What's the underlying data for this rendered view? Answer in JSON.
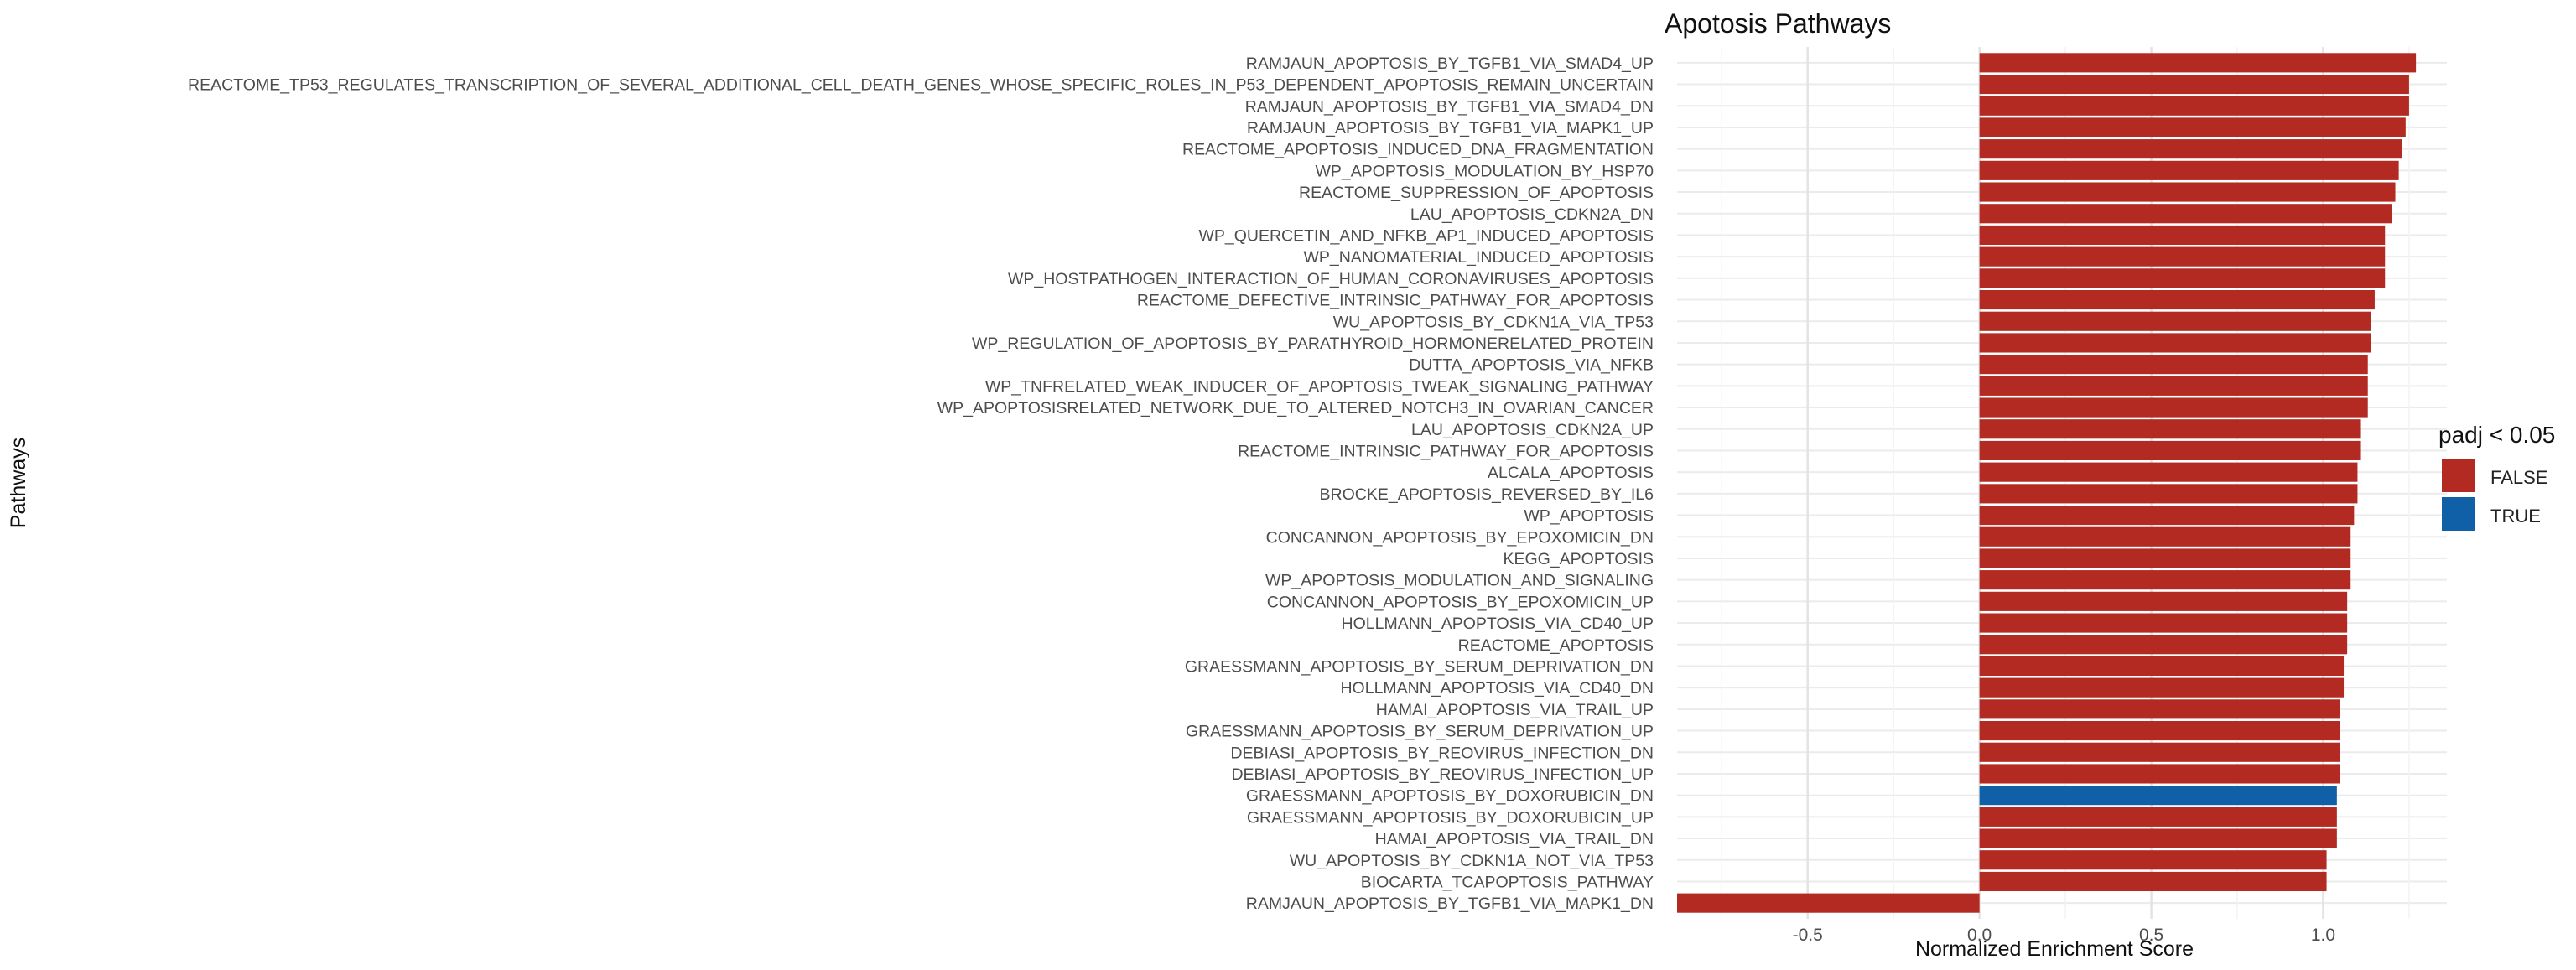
{
  "chart_data": {
    "type": "bar",
    "orientation": "horizontal",
    "title": "Apotosis Pathways",
    "xlabel": "Normalized Enrichment Score",
    "ylabel": "Pathways",
    "xlim": [
      -0.88,
      1.36
    ],
    "xticks": [
      -0.5,
      0.0,
      0.5,
      1.0
    ],
    "xtick_labels": [
      "-0.5",
      "0.0",
      "0.5",
      "1.0"
    ],
    "grid": true,
    "legend": {
      "title": "padj < 0.05",
      "placement": "right",
      "entries": [
        {
          "label": "FALSE",
          "color": "#b22a22"
        },
        {
          "label": "TRUE",
          "color": "#1060a8"
        }
      ]
    },
    "colors": {
      "false": "#b22a22",
      "true": "#1060a8"
    },
    "categories": [
      "RAMJAUN_APOPTOSIS_BY_TGFB1_VIA_SMAD4_UP",
      "REACTOME_TP53_REGULATES_TRANSCRIPTION_OF_SEVERAL_ADDITIONAL_CELL_DEATH_GENES_WHOSE_SPECIFIC_ROLES_IN_P53_DEPENDENT_APOPTOSIS_REMAIN_UNCERTAIN",
      "RAMJAUN_APOPTOSIS_BY_TGFB1_VIA_SMAD4_DN",
      "RAMJAUN_APOPTOSIS_BY_TGFB1_VIA_MAPK1_UP",
      "REACTOME_APOPTOSIS_INDUCED_DNA_FRAGMENTATION",
      "WP_APOPTOSIS_MODULATION_BY_HSP70",
      "REACTOME_SUPPRESSION_OF_APOPTOSIS",
      "LAU_APOPTOSIS_CDKN2A_DN",
      "WP_QUERCETIN_AND_NFKB_AP1_INDUCED_APOPTOSIS",
      "WP_NANOMATERIAL_INDUCED_APOPTOSIS",
      "WP_HOSTPATHOGEN_INTERACTION_OF_HUMAN_CORONAVIRUSES_APOPTOSIS",
      "REACTOME_DEFECTIVE_INTRINSIC_PATHWAY_FOR_APOPTOSIS",
      "WU_APOPTOSIS_BY_CDKN1A_VIA_TP53",
      "WP_REGULATION_OF_APOPTOSIS_BY_PARATHYROID_HORMONERELATED_PROTEIN",
      "DUTTA_APOPTOSIS_VIA_NFKB",
      "WP_TNFRELATED_WEAK_INDUCER_OF_APOPTOSIS_TWEAK_SIGNALING_PATHWAY",
      "WP_APOPTOSISRELATED_NETWORK_DUE_TO_ALTERED_NOTCH3_IN_OVARIAN_CANCER",
      "LAU_APOPTOSIS_CDKN2A_UP",
      "REACTOME_INTRINSIC_PATHWAY_FOR_APOPTOSIS",
      "ALCALA_APOPTOSIS",
      "BROCKE_APOPTOSIS_REVERSED_BY_IL6",
      "WP_APOPTOSIS",
      "CONCANNON_APOPTOSIS_BY_EPOXOMICIN_DN",
      "KEGG_APOPTOSIS",
      "WP_APOPTOSIS_MODULATION_AND_SIGNALING",
      "CONCANNON_APOPTOSIS_BY_EPOXOMICIN_UP",
      "HOLLMANN_APOPTOSIS_VIA_CD40_UP",
      "REACTOME_APOPTOSIS",
      "GRAESSMANN_APOPTOSIS_BY_SERUM_DEPRIVATION_DN",
      "HOLLMANN_APOPTOSIS_VIA_CD40_DN",
      "HAMAI_APOPTOSIS_VIA_TRAIL_UP",
      "GRAESSMANN_APOPTOSIS_BY_SERUM_DEPRIVATION_UP",
      "DEBIASI_APOPTOSIS_BY_REOVIRUS_INFECTION_DN",
      "DEBIASI_APOPTOSIS_BY_REOVIRUS_INFECTION_UP",
      "GRAESSMANN_APOPTOSIS_BY_DOXORUBICIN_DN",
      "GRAESSMANN_APOPTOSIS_BY_DOXORUBICIN_UP",
      "HAMAI_APOPTOSIS_VIA_TRAIL_DN",
      "WU_APOPTOSIS_BY_CDKN1A_NOT_VIA_TP53",
      "BIOCARTA_TCAPOPTOSIS_PATHWAY",
      "RAMJAUN_APOPTOSIS_BY_TGFB1_VIA_MAPK1_DN"
    ],
    "values": [
      1.27,
      1.25,
      1.25,
      1.24,
      1.23,
      1.22,
      1.21,
      1.2,
      1.18,
      1.18,
      1.18,
      1.15,
      1.14,
      1.14,
      1.13,
      1.13,
      1.13,
      1.11,
      1.11,
      1.1,
      1.1,
      1.09,
      1.08,
      1.08,
      1.08,
      1.07,
      1.07,
      1.07,
      1.06,
      1.06,
      1.05,
      1.05,
      1.05,
      1.05,
      1.04,
      1.04,
      1.04,
      1.01,
      1.01,
      -0.88
    ],
    "padj_significant": [
      false,
      false,
      false,
      false,
      false,
      false,
      false,
      false,
      false,
      false,
      false,
      false,
      false,
      false,
      false,
      false,
      false,
      false,
      false,
      false,
      false,
      false,
      false,
      false,
      false,
      false,
      false,
      false,
      false,
      false,
      false,
      false,
      false,
      false,
      true,
      false,
      false,
      false,
      false,
      false
    ]
  }
}
